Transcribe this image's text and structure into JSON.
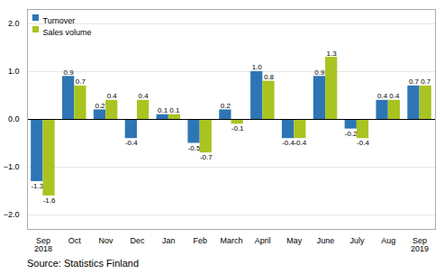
{
  "chart_data": {
    "type": "bar",
    "categories": [
      "Sep\n2018",
      "Oct",
      "Nov",
      "Dec",
      "Jan",
      "Feb",
      "March",
      "April",
      "May",
      "June",
      "July",
      "Aug",
      "Sep\n2019"
    ],
    "series": [
      {
        "name": "Turnover",
        "color": "#2e75b6",
        "values": [
          -1.3,
          0.9,
          0.2,
          -0.4,
          0.1,
          -0.5,
          0.2,
          1.0,
          -0.4,
          0.9,
          -0.2,
          0.4,
          0.7
        ],
        "value_labels": [
          "-1.3",
          "0.9",
          "0.2",
          "-0.4",
          "0.1",
          "-0.5",
          "0.2",
          "1.0",
          "-0.4",
          "0.9",
          "-0.2",
          "0.4",
          "0.7"
        ]
      },
      {
        "name": "Sales volume",
        "color": "#a9c421",
        "values": [
          -1.6,
          0.7,
          0.4,
          0.4,
          0.1,
          -0.7,
          -0.1,
          0.8,
          -0.4,
          1.3,
          -0.4,
          0.4,
          0.7
        ],
        "value_labels": [
          "-1.6",
          "0.7",
          "0.4",
          "0.4",
          "0.1",
          "-0.7",
          "-0.1",
          "0.8",
          "-0.4",
          "1.3",
          "-0.4",
          "0.4",
          "0.7"
        ]
      }
    ],
    "ylim": [
      -2.3,
      2.3
    ],
    "yticks": [
      -2,
      -1,
      0,
      1,
      2
    ],
    "grid": true,
    "legend": "upper left",
    "data_labels": true,
    "annotations": [
      "Source: Statistics Finland"
    ]
  }
}
